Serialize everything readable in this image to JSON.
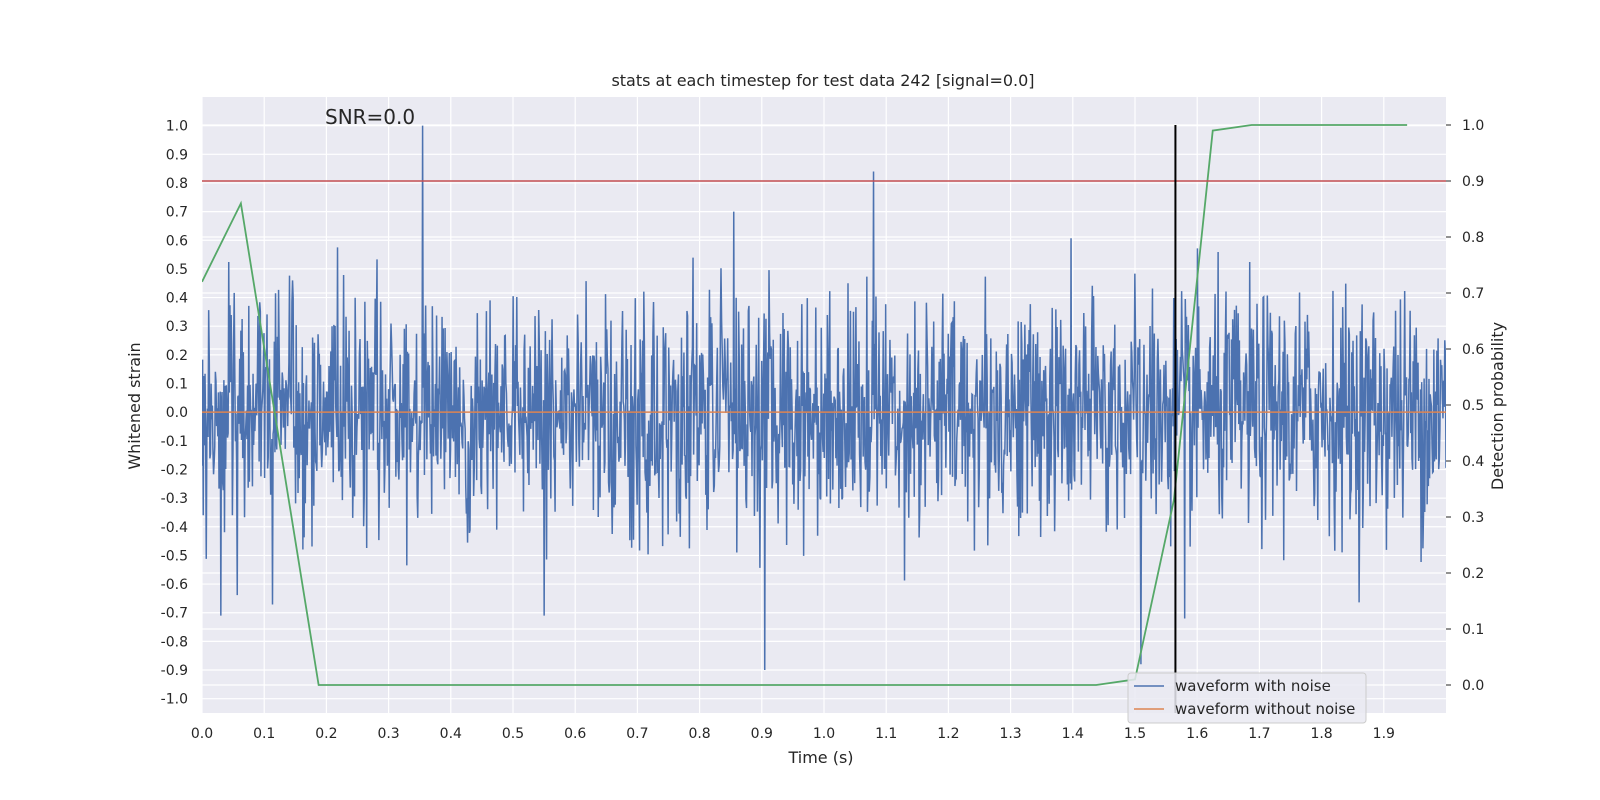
{
  "chart_data": {
    "type": "line",
    "title": "stats at each timestep for test data 242 [signal=0.0]",
    "annotation": "SNR=0.0",
    "xlabel": "Time (s)",
    "ylabel": "Whitened strain",
    "ylabel_right": "Detection probability",
    "xlim": [
      0.0,
      2.0
    ],
    "ylim": [
      -1.05,
      1.1
    ],
    "ylim_right": [
      -0.05,
      1.05
    ],
    "grid": true,
    "legend_position": "lower right",
    "x_ticks": [
      "0.0",
      "0.1",
      "0.2",
      "0.3",
      "0.4",
      "0.5",
      "0.6",
      "0.7",
      "0.8",
      "0.9",
      "1.0",
      "1.1",
      "1.2",
      "1.3",
      "1.4",
      "1.5",
      "1.6",
      "1.7",
      "1.8",
      "1.9"
    ],
    "y_ticks": [
      "1.0",
      "0.9",
      "0.8",
      "0.7",
      "0.6",
      "0.5",
      "0.4",
      "0.3",
      "0.2",
      "0.1",
      "0.0",
      "-0.1",
      "-0.2",
      "-0.3",
      "-0.4",
      "-0.5",
      "-0.6",
      "-0.7",
      "-0.8",
      "-0.9",
      "-1.0"
    ],
    "y_ticks_right": [
      "1.0",
      "0.9",
      "0.8",
      "0.7",
      "0.6",
      "0.5",
      "0.4",
      "0.3",
      "0.2",
      "0.1",
      "0.0"
    ],
    "colors": {
      "plot_background": "#eaeaf2",
      "grid": "#ffffff",
      "noisy": "#4c72b0",
      "clean": "#dd8452",
      "probability": "#55a868",
      "threshold": "#c44e52",
      "marker": "#000000"
    },
    "threshold_probability": 0.9,
    "marker_time": 1.565,
    "series": [
      {
        "name": "waveform with noise",
        "axis": "left",
        "x_range": [
          0.0,
          2.0
        ],
        "sample_count": 2048,
        "noise_sigma": 0.2,
        "peak_max": 1.0,
        "notable_values": [
          {
            "x": 0.355,
            "y": 1.0
          },
          {
            "x": 1.08,
            "y": 0.84
          },
          {
            "x": 0.03,
            "y": -0.71
          },
          {
            "x": 0.905,
            "y": -0.9
          },
          {
            "x": 1.51,
            "y": -0.88
          },
          {
            "x": 1.58,
            "y": -0.72
          },
          {
            "x": 0.55,
            "y": -0.71
          }
        ]
      },
      {
        "name": "waveform without noise",
        "axis": "left",
        "x": [
          0.0,
          2.0
        ],
        "y": [
          0.0,
          0.0
        ]
      },
      {
        "axis": "right",
        "x": [
          0.0,
          0.0625,
          0.125,
          0.1875,
          0.25,
          0.3125,
          1.4375,
          1.5,
          1.5625,
          1.625,
          1.6875,
          1.9375
        ],
        "y": [
          0.72,
          0.86,
          0.43,
          0.0,
          0.0,
          0.0,
          0.0,
          0.01,
          0.33,
          0.99,
          1.0,
          1.0
        ]
      }
    ]
  }
}
